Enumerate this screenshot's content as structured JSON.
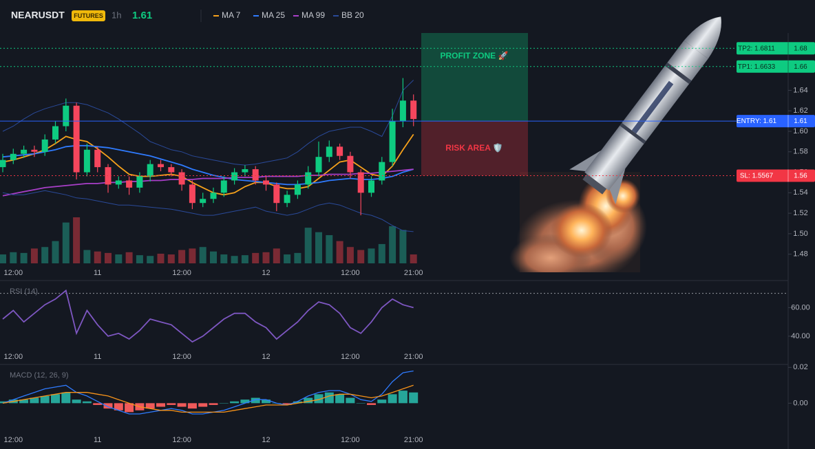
{
  "header": {
    "symbol": "NEARUSDT",
    "badge": "FUTURES",
    "interval": "1h",
    "price": "1.61"
  },
  "chart_data": [
    {
      "type": "candlestick",
      "categories": [
        null,
        "12:00",
        null,
        null,
        null,
        null,
        null,
        null,
        null,
        "11",
        null,
        null,
        null,
        null,
        null,
        null,
        null,
        "12:00",
        null,
        null,
        null,
        null,
        null,
        null,
        null,
        "12",
        null,
        null,
        null,
        null,
        null,
        null,
        null,
        "12:00",
        null,
        null,
        null,
        null,
        null,
        "21:00"
      ],
      "open": [
        1.565,
        1.572,
        1.578,
        1.582,
        1.58,
        1.592,
        1.605,
        1.625,
        1.56,
        1.582,
        1.565,
        1.548,
        1.552,
        1.545,
        1.556,
        1.568,
        1.565,
        1.56,
        1.548,
        1.53,
        1.534,
        1.54,
        1.552,
        1.56,
        1.563,
        1.552,
        1.548,
        1.53,
        1.538,
        1.548,
        1.56,
        1.575,
        1.585,
        1.576,
        1.56,
        1.54,
        1.552,
        1.57,
        1.61,
        1.63
      ],
      "high": [
        1.578,
        1.583,
        1.586,
        1.586,
        1.597,
        1.61,
        1.632,
        1.628,
        1.588,
        1.585,
        1.568,
        1.556,
        1.556,
        1.56,
        1.572,
        1.572,
        1.568,
        1.563,
        1.552,
        1.54,
        1.545,
        1.556,
        1.564,
        1.567,
        1.566,
        1.556,
        1.55,
        1.542,
        1.552,
        1.566,
        1.59,
        1.591,
        1.588,
        1.58,
        1.563,
        1.556,
        1.575,
        1.622,
        1.652,
        1.636
      ],
      "low": [
        1.56,
        1.568,
        1.574,
        1.575,
        1.576,
        1.588,
        1.6,
        1.553,
        1.556,
        1.56,
        1.54,
        1.544,
        1.538,
        1.54,
        1.551,
        1.561,
        1.556,
        1.542,
        1.524,
        1.526,
        1.53,
        1.536,
        1.548,
        1.556,
        1.548,
        1.542,
        1.522,
        1.526,
        1.534,
        1.544,
        1.556,
        1.57,
        1.572,
        1.554,
        1.518,
        1.536,
        1.548,
        1.566,
        1.604,
        1.605
      ],
      "close": [
        1.572,
        1.578,
        1.582,
        1.58,
        1.592,
        1.605,
        1.625,
        1.56,
        1.582,
        1.565,
        1.548,
        1.552,
        1.545,
        1.556,
        1.568,
        1.565,
        1.56,
        1.548,
        1.53,
        1.534,
        1.54,
        1.552,
        1.56,
        1.563,
        1.552,
        1.548,
        1.53,
        1.538,
        1.548,
        1.56,
        1.575,
        1.585,
        1.576,
        1.56,
        1.54,
        1.552,
        1.57,
        1.61,
        1.63,
        1.612
      ],
      "up_color": "#0ecb81",
      "down_color": "#f6465d",
      "volume": {
        "values": [
          12,
          15,
          14,
          20,
          22,
          30,
          55,
          62,
          18,
          16,
          14,
          12,
          15,
          11,
          10,
          13,
          12,
          18,
          20,
          22,
          16,
          12,
          10,
          11,
          14,
          15,
          20,
          12,
          14,
          48,
          42,
          38,
          30,
          22,
          18,
          20,
          26,
          50,
          45,
          12
        ],
        "lim": [
          0,
          100
        ],
        "up_color": "#1b5e57",
        "down_color": "#7a2a34"
      },
      "series": [
        {
          "name": "MA 7",
          "color": "#f7a21b",
          "values": [
            1.57,
            1.572,
            1.575,
            1.578,
            1.582,
            1.588,
            1.595,
            1.592,
            1.59,
            1.583,
            1.575,
            1.566,
            1.558,
            1.556,
            1.556,
            1.557,
            1.558,
            1.556,
            1.55,
            1.545,
            1.54,
            1.538,
            1.54,
            1.546,
            1.55,
            1.55,
            1.546,
            1.544,
            1.544,
            1.546,
            1.554,
            1.562,
            1.57,
            1.572,
            1.565,
            1.558,
            1.556,
            1.566,
            1.582,
            1.597
          ]
        },
        {
          "name": "MA 25",
          "color": "#2f7bff",
          "values": [
            1.575,
            1.576,
            1.577,
            1.578,
            1.58,
            1.582,
            1.585,
            1.586,
            1.586,
            1.585,
            1.584,
            1.582,
            1.58,
            1.578,
            1.576,
            1.573,
            1.57,
            1.567,
            1.563,
            1.56,
            1.557,
            1.555,
            1.553,
            1.552,
            1.551,
            1.55,
            1.549,
            1.548,
            1.548,
            1.549,
            1.55,
            1.552,
            1.553,
            1.554,
            1.553,
            1.553,
            1.554,
            1.556,
            1.56,
            1.563
          ]
        },
        {
          "name": "MA 99",
          "color": "#a93fc9",
          "values": [
            1.537,
            1.539,
            1.541,
            1.543,
            1.545,
            1.546,
            1.547,
            1.548,
            1.549,
            1.549,
            1.55,
            1.55,
            1.551,
            1.551,
            1.552,
            1.552,
            1.553,
            1.553,
            1.553,
            1.554,
            1.554,
            1.554,
            1.555,
            1.555,
            1.555,
            1.556,
            1.556,
            1.556,
            1.556,
            1.557,
            1.557,
            1.558,
            1.558,
            1.558,
            1.559,
            1.559,
            1.56,
            1.561,
            1.562,
            1.563
          ]
        },
        {
          "name": "BB 20",
          "color": "#2a4a9a",
          "upper": [
            1.6,
            1.605,
            1.612,
            1.618,
            1.622,
            1.625,
            1.628,
            1.628,
            1.626,
            1.622,
            1.618,
            1.612,
            1.605,
            1.598,
            1.59,
            1.586,
            1.582,
            1.58,
            1.576,
            1.574,
            1.572,
            1.57,
            1.568,
            1.567,
            1.568,
            1.57,
            1.572,
            1.574,
            1.58,
            1.588,
            1.595,
            1.6,
            1.602,
            1.604,
            1.604,
            1.6,
            1.595,
            1.615,
            1.64,
            1.65
          ],
          "lower": [
            1.54,
            1.538,
            1.538,
            1.54,
            1.542,
            1.54,
            1.538,
            1.535,
            1.534,
            1.532,
            1.53,
            1.528,
            1.528,
            1.527,
            1.526,
            1.525,
            1.524,
            1.522,
            1.52,
            1.518,
            1.518,
            1.52,
            1.522,
            1.524,
            1.526,
            1.522,
            1.52,
            1.518,
            1.52,
            1.524,
            1.528,
            1.53,
            1.528,
            1.524,
            1.52,
            1.518,
            1.514,
            1.508,
            1.503,
            1.502
          ]
        }
      ],
      "ylim": [
        1.463,
        1.696
      ],
      "yticks": [
        1.64,
        1.62,
        {
          "value": 1.6,
          "label": "1.60"
        },
        1.58,
        1.56,
        1.54,
        1.52,
        {
          "value": 1.5,
          "label": "1.50"
        },
        1.48
      ],
      "levels": [
        {
          "label": "TP2: 1.6811",
          "value": 1.6811,
          "axis_label": "1.68",
          "color": "#0ecb81",
          "style": "dotted"
        },
        {
          "label": "TP1: 1.6633",
          "value": 1.6633,
          "axis_label": "1.66",
          "color": "#0ecb81",
          "style": "dotted"
        },
        {
          "label": "ENTRY: 1.61",
          "value": 1.61,
          "axis_label": "1.61",
          "color": "#2962ff",
          "style": "solid"
        },
        {
          "label": "SL: 1.5567",
          "value": 1.5567,
          "axis_label": "1.56",
          "color": "#f23645",
          "style": "dotted"
        }
      ],
      "zones": [
        {
          "label": "PROFIT ZONE 🚀",
          "from": 1.61,
          "to": 1.696,
          "color": "#0ecb81"
        },
        {
          "label": "RISK AREA 🛡️",
          "from": 1.5567,
          "to": 1.61,
          "color": "#f23645"
        }
      ]
    },
    {
      "type": "line",
      "title": "RSI (14)",
      "color": "#7e57c2",
      "values": [
        52,
        58,
        50,
        56,
        62,
        66,
        72,
        42,
        58,
        48,
        40,
        42,
        38,
        44,
        52,
        50,
        48,
        42,
        36,
        40,
        46,
        52,
        56,
        56,
        50,
        46,
        38,
        44,
        50,
        58,
        64,
        62,
        56,
        46,
        42,
        50,
        60,
        66,
        62,
        60
      ],
      "ylim": [
        26,
        78
      ],
      "yticks": [
        {
          "value": 60,
          "label": "60.00"
        },
        {
          "value": 40,
          "label": "40.00"
        }
      ],
      "levels": [
        70
      ]
    },
    {
      "type": "macd",
      "title": "MACD (12, 26, 9)",
      "histogram": {
        "values": [
          0.001,
          0.002,
          0.002,
          0.003,
          0.004,
          0.005,
          0.006,
          0.002,
          0.001,
          -0.001,
          -0.003,
          -0.004,
          -0.005,
          -0.004,
          -0.003,
          -0.002,
          -0.001,
          -0.002,
          -0.003,
          -0.002,
          -0.001,
          0.0,
          0.001,
          0.002,
          0.003,
          0.002,
          0.0,
          -0.001,
          0.001,
          0.003,
          0.005,
          0.006,
          0.005,
          0.003,
          0.0,
          -0.001,
          0.002,
          0.005,
          0.007,
          0.006
        ],
        "up_color": "#26a69a",
        "down_color": "#f05a5a"
      },
      "series": [
        {
          "color": "#2f7bff",
          "values": [
            0.0,
            0.002,
            0.004,
            0.006,
            0.008,
            0.009,
            0.01,
            0.006,
            0.004,
            0.001,
            -0.002,
            -0.004,
            -0.006,
            -0.006,
            -0.005,
            -0.004,
            -0.003,
            -0.004,
            -0.006,
            -0.006,
            -0.005,
            -0.004,
            -0.002,
            0.0,
            0.002,
            0.002,
            0.0,
            -0.001,
            0.001,
            0.004,
            0.006,
            0.007,
            0.007,
            0.005,
            0.002,
            0.001,
            0.005,
            0.012,
            0.017,
            0.018
          ]
        },
        {
          "color": "#f7931a",
          "values": [
            0.0,
            0.001,
            0.002,
            0.003,
            0.004,
            0.005,
            0.006,
            0.006,
            0.006,
            0.005,
            0.004,
            0.002,
            0.0,
            -0.002,
            -0.003,
            -0.004,
            -0.004,
            -0.005,
            -0.005,
            -0.005,
            -0.005,
            -0.005,
            -0.004,
            -0.003,
            -0.002,
            -0.001,
            -0.001,
            -0.001,
            0.0,
            0.001,
            0.002,
            0.004,
            0.005,
            0.005,
            0.004,
            0.003,
            0.004,
            0.006,
            0.008,
            0.01
          ]
        }
      ],
      "ylim": [
        -0.016,
        0.0205
      ],
      "yticks": [
        0.02,
        {
          "value": 0,
          "label": "0.00"
        }
      ]
    }
  ]
}
